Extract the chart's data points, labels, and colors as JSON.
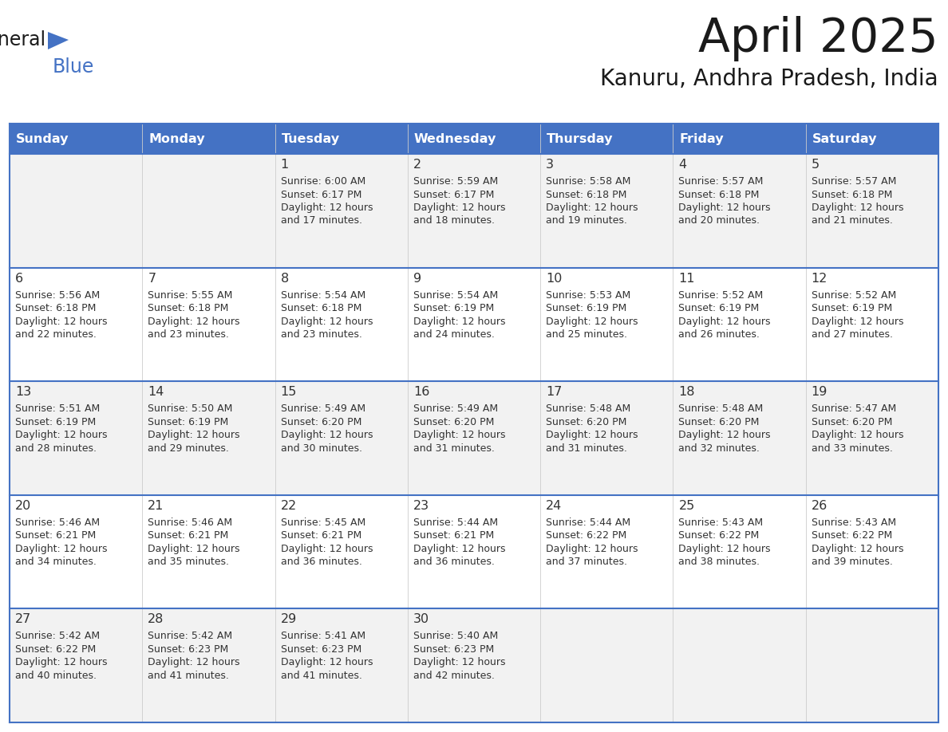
{
  "title": "April 2025",
  "subtitle": "Kanuru, Andhra Pradesh, India",
  "header_bg": "#4472C4",
  "header_text_color": "#FFFFFF",
  "day_names": [
    "Sunday",
    "Monday",
    "Tuesday",
    "Wednesday",
    "Thursday",
    "Friday",
    "Saturday"
  ],
  "row0_bg": "#F2F2F2",
  "row1_bg": "#FFFFFF",
  "row2_bg": "#F2F2F2",
  "row3_bg": "#FFFFFF",
  "row4_bg": "#F2F2F2",
  "cell_text_color": "#333333",
  "border_color": "#4472C4",
  "logo_general_color": "#1a1a1a",
  "logo_blue_color": "#4472C4",
  "logo_triangle_color": "#4472C4",
  "days": [
    {
      "day": null,
      "col": 0,
      "row": 0,
      "sunrise": null,
      "sunset": null,
      "daylight_h": null,
      "daylight_m": null
    },
    {
      "day": null,
      "col": 1,
      "row": 0,
      "sunrise": null,
      "sunset": null,
      "daylight_h": null,
      "daylight_m": null
    },
    {
      "day": 1,
      "col": 2,
      "row": 0,
      "sunrise": "6:00 AM",
      "sunset": "6:17 PM",
      "daylight_h": "12 hours",
      "daylight_m": "and 17 minutes."
    },
    {
      "day": 2,
      "col": 3,
      "row": 0,
      "sunrise": "5:59 AM",
      "sunset": "6:17 PM",
      "daylight_h": "12 hours",
      "daylight_m": "and 18 minutes."
    },
    {
      "day": 3,
      "col": 4,
      "row": 0,
      "sunrise": "5:58 AM",
      "sunset": "6:18 PM",
      "daylight_h": "12 hours",
      "daylight_m": "and 19 minutes."
    },
    {
      "day": 4,
      "col": 5,
      "row": 0,
      "sunrise": "5:57 AM",
      "sunset": "6:18 PM",
      "daylight_h": "12 hours",
      "daylight_m": "and 20 minutes."
    },
    {
      "day": 5,
      "col": 6,
      "row": 0,
      "sunrise": "5:57 AM",
      "sunset": "6:18 PM",
      "daylight_h": "12 hours",
      "daylight_m": "and 21 minutes."
    },
    {
      "day": 6,
      "col": 0,
      "row": 1,
      "sunrise": "5:56 AM",
      "sunset": "6:18 PM",
      "daylight_h": "12 hours",
      "daylight_m": "and 22 minutes."
    },
    {
      "day": 7,
      "col": 1,
      "row": 1,
      "sunrise": "5:55 AM",
      "sunset": "6:18 PM",
      "daylight_h": "12 hours",
      "daylight_m": "and 23 minutes."
    },
    {
      "day": 8,
      "col": 2,
      "row": 1,
      "sunrise": "5:54 AM",
      "sunset": "6:18 PM",
      "daylight_h": "12 hours",
      "daylight_m": "and 23 minutes."
    },
    {
      "day": 9,
      "col": 3,
      "row": 1,
      "sunrise": "5:54 AM",
      "sunset": "6:19 PM",
      "daylight_h": "12 hours",
      "daylight_m": "and 24 minutes."
    },
    {
      "day": 10,
      "col": 4,
      "row": 1,
      "sunrise": "5:53 AM",
      "sunset": "6:19 PM",
      "daylight_h": "12 hours",
      "daylight_m": "and 25 minutes."
    },
    {
      "day": 11,
      "col": 5,
      "row": 1,
      "sunrise": "5:52 AM",
      "sunset": "6:19 PM",
      "daylight_h": "12 hours",
      "daylight_m": "and 26 minutes."
    },
    {
      "day": 12,
      "col": 6,
      "row": 1,
      "sunrise": "5:52 AM",
      "sunset": "6:19 PM",
      "daylight_h": "12 hours",
      "daylight_m": "and 27 minutes."
    },
    {
      "day": 13,
      "col": 0,
      "row": 2,
      "sunrise": "5:51 AM",
      "sunset": "6:19 PM",
      "daylight_h": "12 hours",
      "daylight_m": "and 28 minutes."
    },
    {
      "day": 14,
      "col": 1,
      "row": 2,
      "sunrise": "5:50 AM",
      "sunset": "6:19 PM",
      "daylight_h": "12 hours",
      "daylight_m": "and 29 minutes."
    },
    {
      "day": 15,
      "col": 2,
      "row": 2,
      "sunrise": "5:49 AM",
      "sunset": "6:20 PM",
      "daylight_h": "12 hours",
      "daylight_m": "and 30 minutes."
    },
    {
      "day": 16,
      "col": 3,
      "row": 2,
      "sunrise": "5:49 AM",
      "sunset": "6:20 PM",
      "daylight_h": "12 hours",
      "daylight_m": "and 31 minutes."
    },
    {
      "day": 17,
      "col": 4,
      "row": 2,
      "sunrise": "5:48 AM",
      "sunset": "6:20 PM",
      "daylight_h": "12 hours",
      "daylight_m": "and 31 minutes."
    },
    {
      "day": 18,
      "col": 5,
      "row": 2,
      "sunrise": "5:48 AM",
      "sunset": "6:20 PM",
      "daylight_h": "12 hours",
      "daylight_m": "and 32 minutes."
    },
    {
      "day": 19,
      "col": 6,
      "row": 2,
      "sunrise": "5:47 AM",
      "sunset": "6:20 PM",
      "daylight_h": "12 hours",
      "daylight_m": "and 33 minutes."
    },
    {
      "day": 20,
      "col": 0,
      "row": 3,
      "sunrise": "5:46 AM",
      "sunset": "6:21 PM",
      "daylight_h": "12 hours",
      "daylight_m": "and 34 minutes."
    },
    {
      "day": 21,
      "col": 1,
      "row": 3,
      "sunrise": "5:46 AM",
      "sunset": "6:21 PM",
      "daylight_h": "12 hours",
      "daylight_m": "and 35 minutes."
    },
    {
      "day": 22,
      "col": 2,
      "row": 3,
      "sunrise": "5:45 AM",
      "sunset": "6:21 PM",
      "daylight_h": "12 hours",
      "daylight_m": "and 36 minutes."
    },
    {
      "day": 23,
      "col": 3,
      "row": 3,
      "sunrise": "5:44 AM",
      "sunset": "6:21 PM",
      "daylight_h": "12 hours",
      "daylight_m": "and 36 minutes."
    },
    {
      "day": 24,
      "col": 4,
      "row": 3,
      "sunrise": "5:44 AM",
      "sunset": "6:22 PM",
      "daylight_h": "12 hours",
      "daylight_m": "and 37 minutes."
    },
    {
      "day": 25,
      "col": 5,
      "row": 3,
      "sunrise": "5:43 AM",
      "sunset": "6:22 PM",
      "daylight_h": "12 hours",
      "daylight_m": "and 38 minutes."
    },
    {
      "day": 26,
      "col": 6,
      "row": 3,
      "sunrise": "5:43 AM",
      "sunset": "6:22 PM",
      "daylight_h": "12 hours",
      "daylight_m": "and 39 minutes."
    },
    {
      "day": 27,
      "col": 0,
      "row": 4,
      "sunrise": "5:42 AM",
      "sunset": "6:22 PM",
      "daylight_h": "12 hours",
      "daylight_m": "and 40 minutes."
    },
    {
      "day": 28,
      "col": 1,
      "row": 4,
      "sunrise": "5:42 AM",
      "sunset": "6:23 PM",
      "daylight_h": "12 hours",
      "daylight_m": "and 41 minutes."
    },
    {
      "day": 29,
      "col": 2,
      "row": 4,
      "sunrise": "5:41 AM",
      "sunset": "6:23 PM",
      "daylight_h": "12 hours",
      "daylight_m": "and 41 minutes."
    },
    {
      "day": 30,
      "col": 3,
      "row": 4,
      "sunrise": "5:40 AM",
      "sunset": "6:23 PM",
      "daylight_h": "12 hours",
      "daylight_m": "and 42 minutes."
    },
    {
      "day": null,
      "col": 4,
      "row": 4,
      "sunrise": null,
      "sunset": null,
      "daylight_h": null,
      "daylight_m": null
    },
    {
      "day": null,
      "col": 5,
      "row": 4,
      "sunrise": null,
      "sunset": null,
      "daylight_h": null,
      "daylight_m": null
    },
    {
      "day": null,
      "col": 6,
      "row": 4,
      "sunrise": null,
      "sunset": null,
      "daylight_h": null,
      "daylight_m": null
    }
  ]
}
